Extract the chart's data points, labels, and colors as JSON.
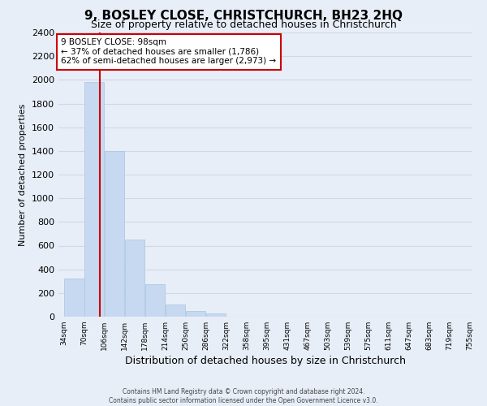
{
  "title": "9, BOSLEY CLOSE, CHRISTCHURCH, BH23 2HQ",
  "subtitle": "Size of property relative to detached houses in Christchurch",
  "xlabel": "Distribution of detached houses by size in Christchurch",
  "ylabel": "Number of detached properties",
  "bar_edges": [
    34,
    70,
    106,
    142,
    178,
    214,
    250,
    286,
    322,
    358,
    395,
    431,
    467,
    503,
    539,
    575,
    611,
    647,
    683,
    719,
    755
  ],
  "bar_heights": [
    325,
    1980,
    1400,
    650,
    275,
    100,
    45,
    30,
    0,
    0,
    0,
    0,
    0,
    0,
    0,
    0,
    0,
    0,
    0,
    0
  ],
  "bar_color": "#c6d9f0",
  "bar_edge_color": "#c6d9f0",
  "bar_border_color": "#a8c4e0",
  "property_line_x": 98,
  "property_line_color": "#cc0000",
  "ylim": [
    0,
    2400
  ],
  "yticks": [
    0,
    200,
    400,
    600,
    800,
    1000,
    1200,
    1400,
    1600,
    1800,
    2000,
    2200,
    2400
  ],
  "annotation_text": "9 BOSLEY CLOSE: 98sqm\n← 37% of detached houses are smaller (1,786)\n62% of semi-detached houses are larger (2,973) →",
  "annotation_box_color": "#ffffff",
  "annotation_box_edge": "#cc0000",
  "footer_line1": "Contains HM Land Registry data © Crown copyright and database right 2024.",
  "footer_line2": "Contains public sector information licensed under the Open Government Licence v3.0.",
  "grid_color": "#d0d8e8",
  "background_color": "#e8eef8",
  "title_fontsize": 11,
  "subtitle_fontsize": 9
}
